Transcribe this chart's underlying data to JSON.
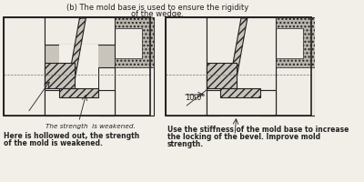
{
  "bg_color": "#f2efe9",
  "title_line1": "(b) The mold base is used to ensure the rigidity",
  "title_line2": "of the wedge.",
  "left_caption_center": "The strength  is weakened.",
  "left_caption_bottom1": "Here is hollowed out, the strength",
  "left_caption_bottom2": "of the mold is weakened.",
  "right_caption1": "Use the stiffness of the mold base to increase",
  "right_caption2": "the locking of the bevel. Improve mold",
  "right_caption3": "strength.",
  "angle_label": "10.0°",
  "line_color": "#222222",
  "fill_gray": "#c8c4bc",
  "fill_white": "#f0ede6",
  "fill_dark": "#888880",
  "dotted_color": "#b8b4ac",
  "hatch_gray": "#aaa8a0"
}
